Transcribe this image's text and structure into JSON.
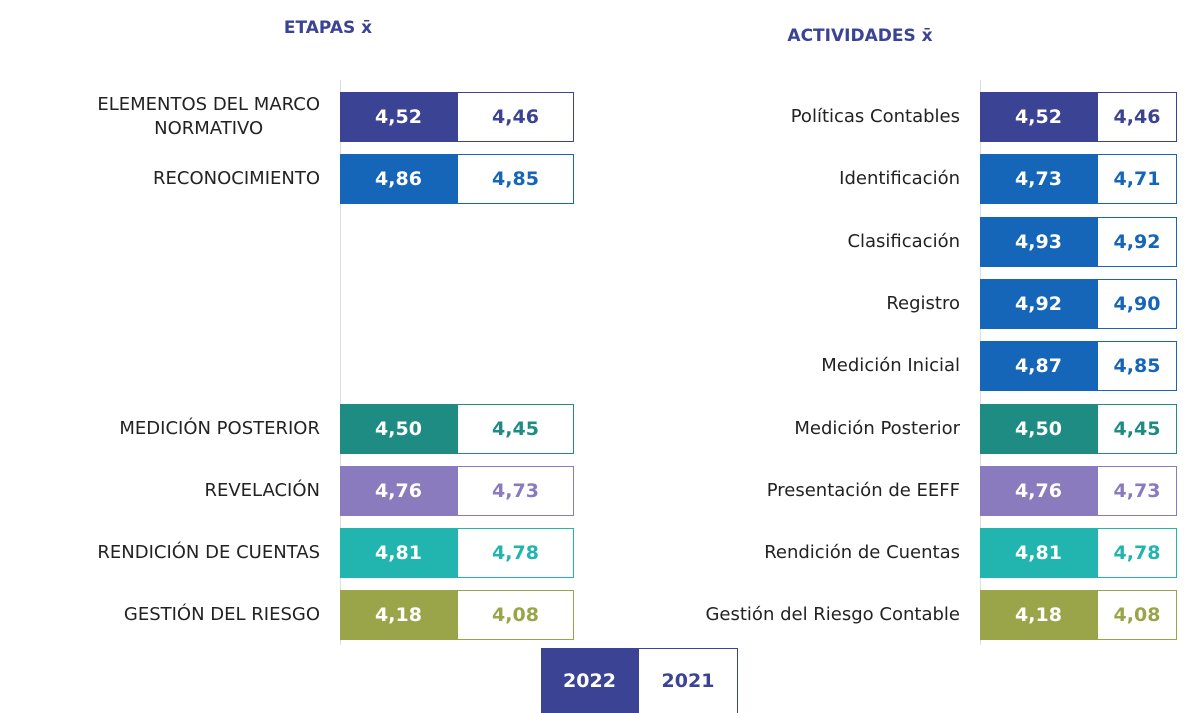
{
  "etapas": {
    "title": "ETAPAS x̄",
    "rows": [
      {
        "label": "ELEMENTOS DEL MARCO\nNORMATIVO",
        "color": "#3b4394",
        "v2022": "4,52",
        "v2021": "4,46"
      },
      {
        "label": "RECONOCIMIENTO",
        "color": "#1565b8",
        "v2022": "4,86",
        "v2021": "4,85"
      },
      {
        "label": "MEDICIÓN POSTERIOR",
        "color": "#1e8c82",
        "v2022": "4,50",
        "v2021": "4,45"
      },
      {
        "label": "REVELACIÓN",
        "color": "#8a7bbf",
        "v2022": "4,76",
        "v2021": "4,73"
      },
      {
        "label": "RENDICIÓN DE CUENTAS",
        "color": "#22b5b0",
        "v2022": "4,81",
        "v2021": "4,78"
      },
      {
        "label": "GESTIÓN DEL RIESGO",
        "color": "#9aa54a",
        "v2022": "4,18",
        "v2021": "4,08"
      }
    ]
  },
  "actividades": {
    "title": "ACTIVIDADES x̄",
    "rows": [
      {
        "label": "Políticas Contables",
        "color": "#3b4394",
        "v2022": "4,52",
        "v2021": "4,46"
      },
      {
        "label": "Identificación",
        "color": "#1565b8",
        "v2022": "4,73",
        "v2021": "4,71"
      },
      {
        "label": "Clasificación",
        "color": "#1565b8",
        "v2022": "4,93",
        "v2021": "4,92"
      },
      {
        "label": "Registro",
        "color": "#1565b8",
        "v2022": "4,92",
        "v2021": "4,90"
      },
      {
        "label": "Medición Inicial",
        "color": "#1565b8",
        "v2022": "4,87",
        "v2021": "4,85"
      },
      {
        "label": "Medición Posterior",
        "color": "#1e8c82",
        "v2022": "4,50",
        "v2021": "4,45"
      },
      {
        "label": "Presentación de EEFF",
        "color": "#8a7bbf",
        "v2022": "4,76",
        "v2021": "4,73"
      },
      {
        "label": "Rendición de Cuentas",
        "color": "#22b5b0",
        "v2022": "4,81",
        "v2021": "4,78"
      },
      {
        "label": "Gestión del Riesgo Contable",
        "color": "#9aa54a",
        "v2022": "4,18",
        "v2021": "4,08"
      }
    ]
  },
  "legend": {
    "y2022": "2022",
    "y2021": "2021",
    "color": "#3b4394"
  }
}
